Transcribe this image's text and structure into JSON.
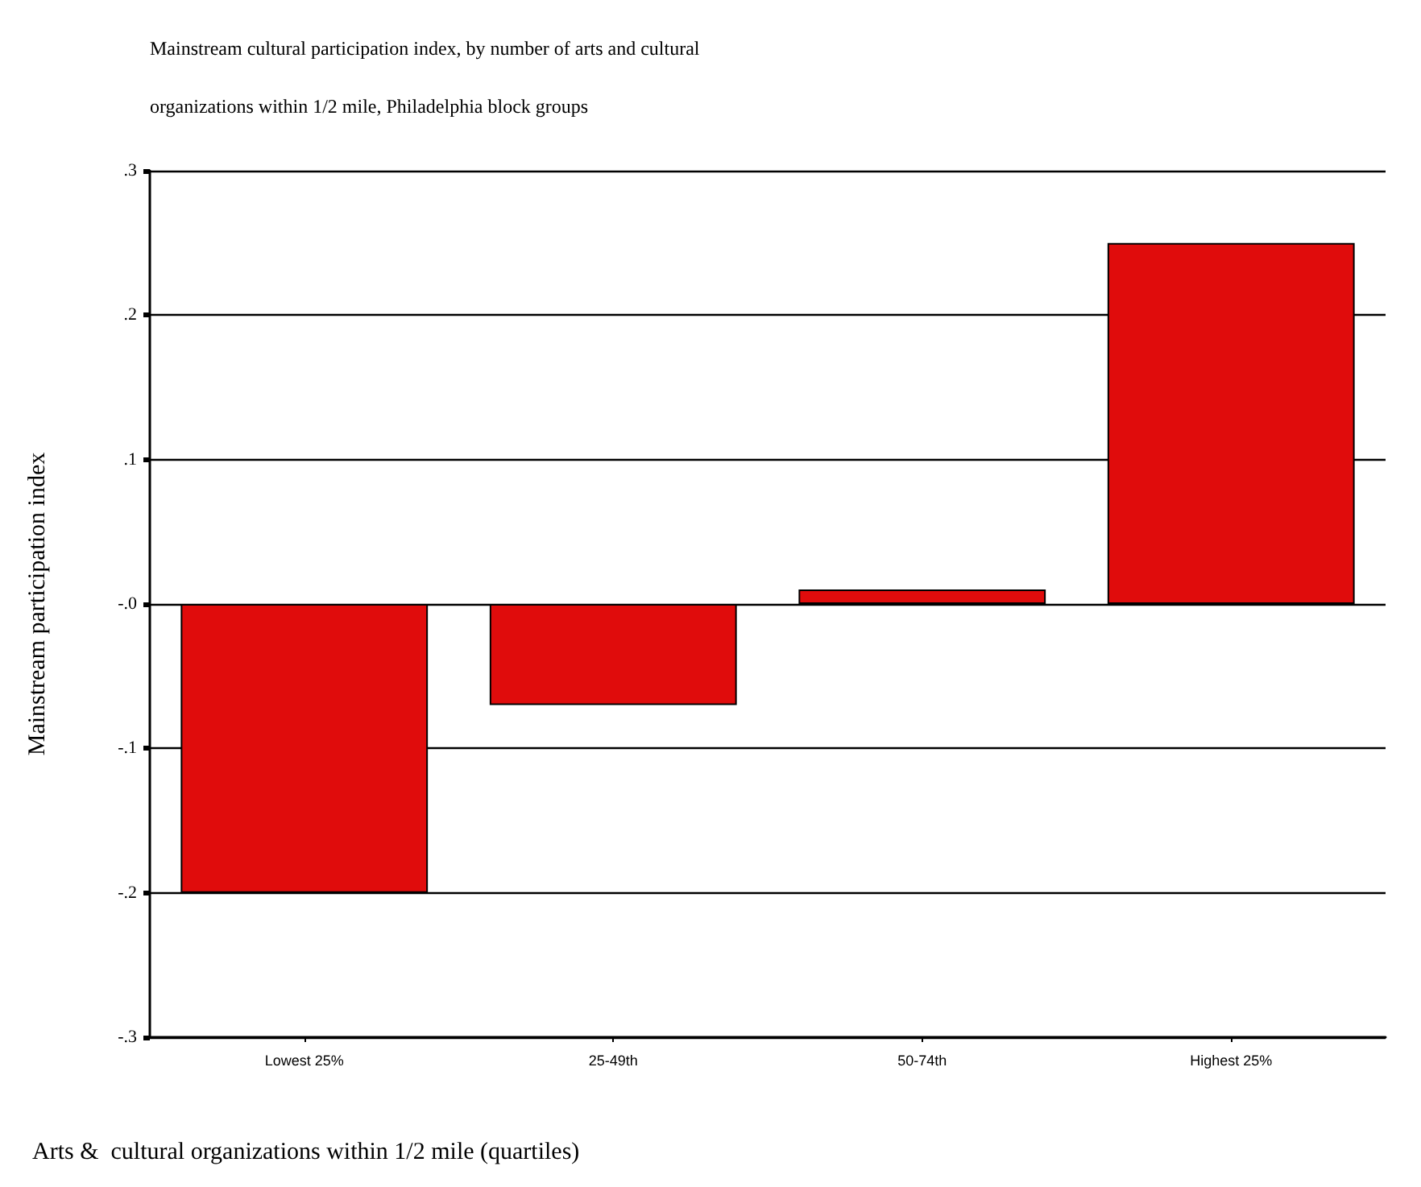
{
  "chart_data": {
    "type": "bar",
    "title": "Mainstream cultural participation index, by number of arts and cultural\n\norganizations within 1/2 mile, Philadelphia block groups",
    "xlabel": "Arts &  cultural organizations within 1/2 mile (quartiles)",
    "ylabel": "Mainstream participation index",
    "categories": [
      "Lowest 25%",
      "25-49th",
      "50-74th",
      "Highest 25%"
    ],
    "values": [
      -0.2,
      -0.07,
      0.01,
      0.25
    ],
    "color": "#e00c0c",
    "ylim": [
      -0.3,
      0.3
    ],
    "yticks": [
      {
        "value": -0.3,
        "label": "-.3"
      },
      {
        "value": -0.2,
        "label": "-.2"
      },
      {
        "value": -0.1,
        "label": "-.1"
      },
      {
        "value": 0,
        "label": "-.0"
      },
      {
        "value": 0.1,
        "label": ".1"
      },
      {
        "value": 0.2,
        "label": ".2"
      },
      {
        "value": 0.3,
        "label": ".3"
      }
    ],
    "grid": "y"
  }
}
